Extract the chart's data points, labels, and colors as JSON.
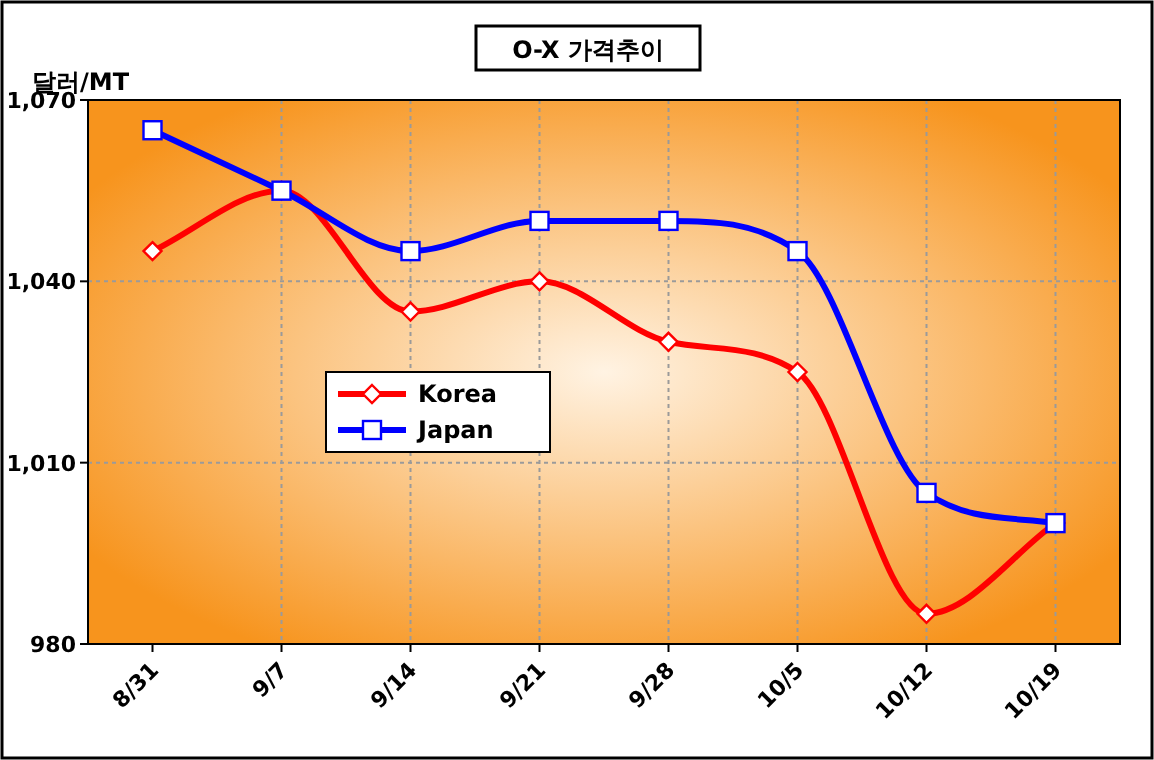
{
  "chart_data": {
    "type": "line",
    "title": "O-X 가격추이",
    "ylabel": "달러/MT",
    "categories": [
      "8/31",
      "9/7",
      "9/14",
      "9/21",
      "9/28",
      "10/5",
      "10/12",
      "10/19"
    ],
    "series": [
      {
        "name": "Korea",
        "color": "#ff0000",
        "marker": "diamond",
        "values": [
          1045,
          1055,
          1035,
          1040,
          1030,
          1025,
          985,
          1000
        ]
      },
      {
        "name": "Japan",
        "color": "#0000ff",
        "marker": "square",
        "values": [
          1065,
          1055,
          1045,
          1050,
          1050,
          1045,
          1005,
          1000
        ]
      }
    ],
    "ylim": [
      980,
      1070
    ],
    "yticks": [
      {
        "value": 980,
        "label": "980"
      },
      {
        "value": 1010,
        "label": "1,010"
      },
      {
        "value": 1040,
        "label": "1,040"
      },
      {
        "value": 1070,
        "label": "1,070"
      }
    ],
    "grid": true,
    "legend": "center"
  }
}
